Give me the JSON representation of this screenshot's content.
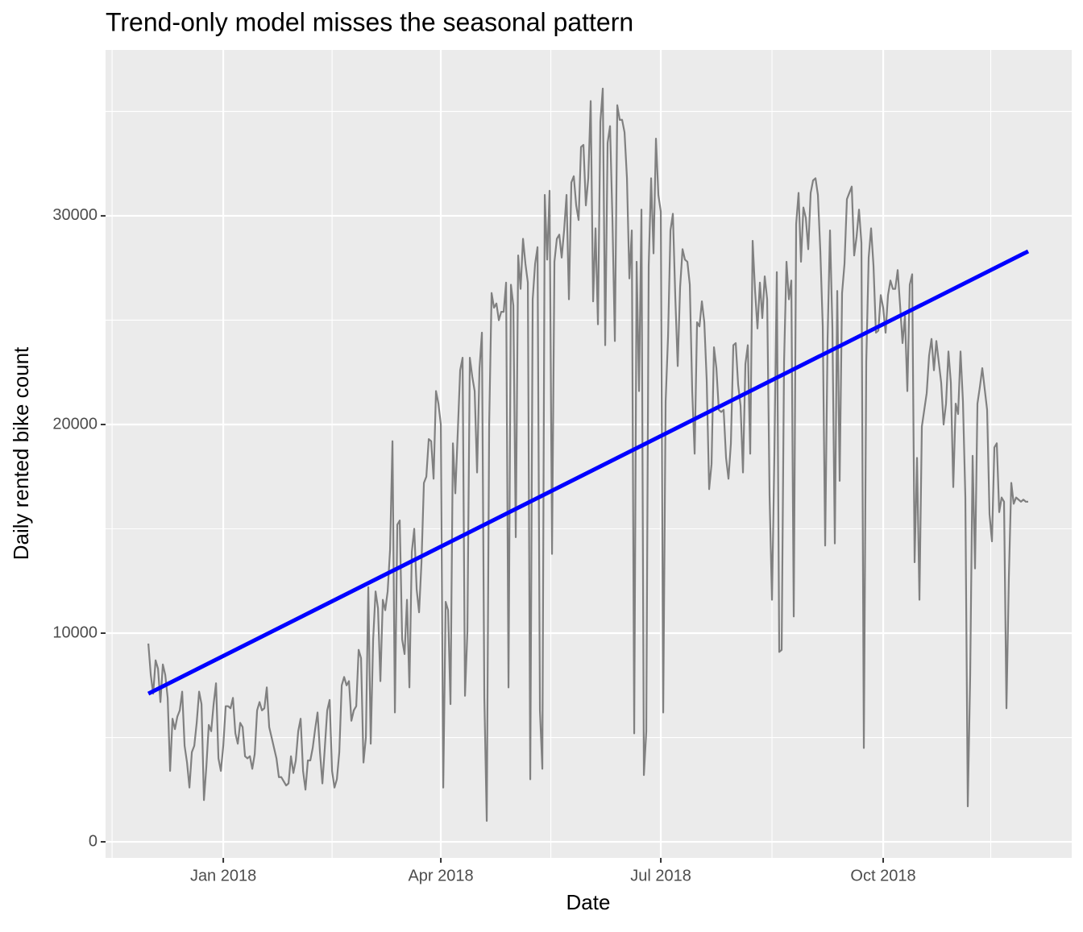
{
  "chart_data": {
    "type": "line",
    "title": "Trend-only model misses the seasonal pattern",
    "xlabel": "Date",
    "ylabel": "Daily rented bike count",
    "series": [
      {
        "color": "#808080",
        "x": [
          -31,
          -30,
          -29,
          -28,
          -27,
          -26,
          -25,
          -24,
          -23,
          -22,
          -21,
          -20,
          -19,
          -18,
          -17,
          -16,
          -15,
          -14,
          -13,
          -12,
          -11,
          -10,
          -9,
          -8,
          -7,
          -6,
          -5,
          -4,
          -3,
          -2,
          -1,
          0,
          1,
          2,
          3,
          4,
          5,
          6,
          7,
          8,
          9,
          10,
          11,
          12,
          13,
          14,
          15,
          16,
          17,
          18,
          19,
          20,
          21,
          22,
          23,
          24,
          25,
          26,
          27,
          28,
          29,
          30,
          31,
          32,
          33,
          34,
          35,
          36,
          37,
          38,
          39,
          40,
          41,
          42,
          43,
          44,
          45,
          46,
          47,
          48,
          49,
          50,
          51,
          52,
          53,
          54,
          55,
          56,
          57,
          58,
          59,
          60,
          61,
          62,
          63,
          64,
          65,
          66,
          67,
          68,
          69,
          70,
          71,
          72,
          73,
          74,
          75,
          76,
          77,
          78,
          79,
          80,
          81,
          82,
          83,
          84,
          85,
          86,
          87,
          88,
          89,
          90,
          91,
          92,
          93,
          94,
          95,
          96,
          97,
          98,
          99,
          100,
          101,
          102,
          103,
          104,
          105,
          106,
          107,
          108,
          109,
          110,
          111,
          112,
          113,
          114,
          115,
          116,
          117,
          118,
          119,
          120,
          121,
          122,
          123,
          124,
          125,
          126,
          127,
          128,
          129,
          130,
          131,
          132,
          133,
          134,
          135,
          136,
          137,
          138,
          139,
          140,
          141,
          142,
          143,
          144,
          145,
          146,
          147,
          148,
          149,
          150,
          151,
          152,
          153,
          154,
          155,
          156,
          157,
          158,
          159,
          160,
          161,
          162,
          163,
          164,
          165,
          166,
          167,
          168,
          169,
          170,
          171,
          172,
          173,
          174,
          175,
          176,
          177,
          178,
          179,
          180,
          181,
          182,
          183,
          184,
          185,
          186,
          187,
          188,
          189,
          190,
          191,
          192,
          193,
          194,
          195,
          196,
          197,
          198,
          199,
          200,
          201,
          202,
          203,
          204,
          205,
          206,
          207,
          208,
          209,
          210,
          211,
          212,
          213,
          214,
          215,
          216,
          217,
          218,
          219,
          220,
          221,
          222,
          223,
          224,
          225,
          226,
          227,
          228,
          229,
          230,
          231,
          232,
          233,
          234,
          235,
          236,
          237,
          238,
          239,
          240,
          241,
          242,
          243,
          244,
          245,
          246,
          247,
          248,
          249,
          250,
          251,
          252,
          253,
          254,
          255,
          256,
          257,
          258,
          259,
          260,
          261,
          262,
          263,
          264,
          265,
          266,
          267,
          268,
          269,
          270,
          271,
          272,
          273,
          274,
          275,
          276,
          277,
          278,
          279,
          280,
          281,
          282,
          283,
          284,
          285,
          286,
          287,
          288,
          289,
          290,
          291,
          292,
          293,
          294,
          295,
          296,
          297,
          298,
          299,
          300,
          301,
          302,
          303,
          304,
          305,
          306,
          307,
          308,
          309,
          310,
          311,
          312,
          313,
          314,
          315,
          316,
          317,
          318,
          319,
          320,
          321,
          322,
          323,
          324,
          325,
          326,
          327,
          328,
          329,
          330,
          331,
          332,
          333
        ],
        "values": [
          9500,
          8000,
          7100,
          8700,
          8300,
          6700,
          8500,
          8000,
          6900,
          3400,
          5900,
          5400,
          6000,
          6300,
          7200,
          4600,
          3800,
          2600,
          4300,
          4600,
          5700,
          7200,
          6600,
          2000,
          3600,
          5600,
          5300,
          6600,
          7600,
          4000,
          3400,
          4600,
          6500,
          6500,
          6400,
          6900,
          5200,
          4700,
          5700,
          5500,
          4100,
          4000,
          4100,
          3500,
          4200,
          6300,
          6700,
          6300,
          6400,
          7400,
          5500,
          5000,
          4500,
          4000,
          3100,
          3100,
          2900,
          2700,
          2800,
          4100,
          3300,
          3900,
          5300,
          5900,
          3400,
          2500,
          3900,
          3900,
          4500,
          5400,
          6200,
          4300,
          2800,
          4500,
          6300,
          6800,
          3400,
          2600,
          3000,
          4300,
          7500,
          7900,
          7500,
          7700,
          5800,
          6300,
          6500,
          9200,
          8800,
          3800,
          5000,
          12200,
          4700,
          9700,
          12000,
          11200,
          7700,
          11600,
          11100,
          12000,
          14000,
          19200,
          6200,
          15200,
          15400,
          9700,
          9000,
          11600,
          7400,
          13900,
          15000,
          12100,
          11000,
          13400,
          17200,
          17500,
          19300,
          19200,
          17400,
          21600,
          21000,
          20000,
          2600,
          11500,
          11100,
          6600,
          19100,
          16700,
          19600,
          22600,
          23200,
          7000,
          10100,
          23200,
          22300,
          21600,
          17700,
          22700,
          24400,
          6900,
          1000,
          20000,
          26300,
          25600,
          25800,
          25000,
          25400,
          25400,
          26800,
          7400,
          26700,
          25700,
          14600,
          28100,
          26500,
          28900,
          27700,
          26800,
          3000,
          26000,
          27700,
          28500,
          6300,
          3500,
          31000,
          27900,
          31200,
          13800,
          27800,
          28900,
          29100,
          28000,
          29300,
          31000,
          26000,
          31600,
          31900,
          30500,
          29800,
          33300,
          33400,
          30500,
          31800,
          35500,
          25900,
          29400,
          24800,
          34500,
          36100,
          23800,
          33500,
          34300,
          29800,
          24000,
          35300,
          34600,
          34600,
          34000,
          31800,
          27000,
          29300,
          5200,
          27800,
          21600,
          30300,
          3200,
          5300,
          27600,
          31800,
          28200,
          33700,
          31000,
          30200,
          6200,
          21100,
          24200,
          29300,
          30100,
          26100,
          22800,
          26600,
          28400,
          27900,
          27800,
          26700,
          21600,
          18600,
          24900,
          24700,
          25900,
          24900,
          22100,
          16900,
          18100,
          23700,
          22700,
          20700,
          20600,
          20700,
          18400,
          17400,
          19100,
          23800,
          23900,
          21900,
          20900,
          17700,
          22900,
          23800,
          18600,
          28800,
          26400,
          24600,
          26800,
          25100,
          27100,
          26000,
          16600,
          11600,
          18600,
          27300,
          9100,
          9200,
          23000,
          27800,
          26000,
          26900,
          10800,
          29600,
          31100,
          27800,
          30400,
          29900,
          28400,
          31100,
          31700,
          31800,
          31000,
          28300,
          24700,
          14200,
          24100,
          29300,
          24600,
          14300,
          26400,
          17300,
          26300,
          27700,
          30800,
          31100,
          31400,
          28100,
          29000,
          30300,
          28700,
          4500,
          23000,
          28000,
          29400,
          27600,
          24400,
          24500,
          26200,
          25600,
          24400,
          26200,
          26900,
          26500,
          26500,
          27400,
          25700,
          23900,
          25200,
          21600,
          26700,
          27200,
          13400,
          18400,
          11600,
          19900,
          20700,
          21500,
          23300,
          24100,
          22600,
          24000,
          23000,
          22000,
          20000,
          21000,
          23500,
          22000,
          17000,
          21000,
          20500,
          23500,
          21100,
          16500,
          1700,
          8000,
          18500,
          13100,
          21000,
          21800,
          22700,
          21700,
          20700,
          15700,
          14400,
          18900,
          19100,
          15800,
          16500,
          16300,
          6400,
          12700,
          17200,
          16200,
          16500,
          16400,
          16300,
          16400,
          16300,
          16300
        ]
      },
      {
        "color": "#0000ff",
        "x": [
          -31,
          333
        ],
        "values": [
          7100,
          28300
        ]
      }
    ],
    "xlim": [
      -48.7,
      351
    ],
    "xticks": [
      {
        "value": 0,
        "label": "Jan 2018"
      },
      {
        "value": 90,
        "label": "Apr 2018"
      },
      {
        "value": 181,
        "label": "Jul 2018"
      },
      {
        "value": 273,
        "label": "Oct 2018"
      }
    ],
    "xminor": [
      -46,
      45,
      135.5,
      227,
      317.5
    ],
    "ylim": [
      -770,
      37950
    ],
    "yticks": [
      0,
      10000,
      20000,
      30000
    ],
    "yminor": [
      5000,
      15000,
      25000,
      35000
    ],
    "grid": true
  }
}
